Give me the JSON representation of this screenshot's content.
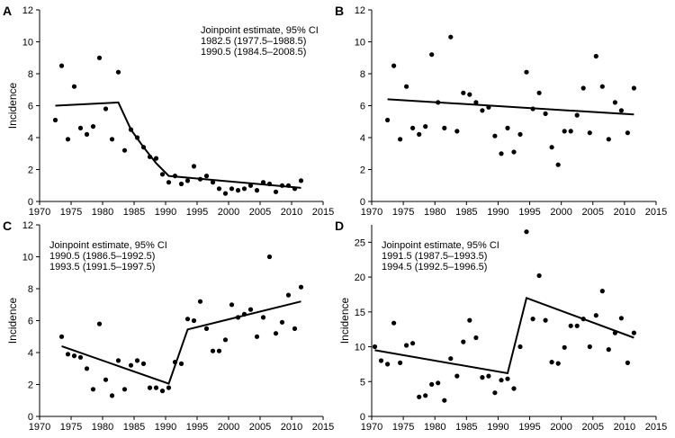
{
  "chart_data": [
    {
      "panel": "A",
      "type": "scatter",
      "ylabel": "Incidence",
      "xlim": [
        1970,
        2015
      ],
      "ylim": [
        0,
        12
      ],
      "xticks": [
        1970,
        1975,
        1980,
        1985,
        1990,
        1995,
        2000,
        2005,
        2010,
        2015
      ],
      "yticks": [
        0,
        2,
        4,
        6,
        8,
        10,
        12
      ],
      "annotation": [
        "Joinpoint estimate, 95% CI",
        "1982.5 (1977.5–1988.5)",
        "1990.5 (1984.5–2008.5)"
      ],
      "points": [
        [
          1972.5,
          5.1
        ],
        [
          1973.5,
          8.5
        ],
        [
          1974.5,
          3.9
        ],
        [
          1975.5,
          7.2
        ],
        [
          1976.5,
          4.6
        ],
        [
          1977.5,
          4.2
        ],
        [
          1978.5,
          4.7
        ],
        [
          1979.5,
          9.0
        ],
        [
          1980.5,
          5.8
        ],
        [
          1981.5,
          3.9
        ],
        [
          1982.5,
          8.1
        ],
        [
          1983.5,
          3.2
        ],
        [
          1984.5,
          4.5
        ],
        [
          1985.5,
          4.0
        ],
        [
          1986.5,
          3.4
        ],
        [
          1987.5,
          2.8
        ],
        [
          1988.5,
          2.7
        ],
        [
          1989.5,
          1.7
        ],
        [
          1990.5,
          1.2
        ],
        [
          1991.5,
          1.6
        ],
        [
          1992.5,
          1.1
        ],
        [
          1993.5,
          1.3
        ],
        [
          1994.5,
          2.2
        ],
        [
          1995.5,
          1.4
        ],
        [
          1996.5,
          1.6
        ],
        [
          1997.5,
          1.2
        ],
        [
          1998.5,
          0.8
        ],
        [
          1999.5,
          0.5
        ],
        [
          2000.5,
          0.8
        ],
        [
          2001.5,
          0.7
        ],
        [
          2002.5,
          0.8
        ],
        [
          2003.5,
          1.0
        ],
        [
          2004.5,
          0.7
        ],
        [
          2005.5,
          1.2
        ],
        [
          2006.5,
          1.1
        ],
        [
          2007.5,
          0.6
        ],
        [
          2008.5,
          1.0
        ],
        [
          2009.5,
          1.0
        ],
        [
          2010.5,
          0.8
        ],
        [
          2011.5,
          1.3
        ]
      ],
      "fit": [
        [
          1972.5,
          6.0
        ],
        [
          1982.5,
          6.2
        ],
        [
          1984.5,
          4.5
        ],
        [
          1986.5,
          3.4
        ],
        [
          1988.5,
          2.4
        ],
        [
          1990.5,
          1.6
        ],
        [
          2011.5,
          0.85
        ]
      ]
    },
    {
      "panel": "B",
      "type": "scatter",
      "ylabel": "",
      "xlim": [
        1970,
        2015
      ],
      "ylim": [
        0,
        12
      ],
      "xticks": [
        1970,
        1975,
        1980,
        1985,
        1990,
        1995,
        2000,
        2005,
        2010,
        2015
      ],
      "yticks": [
        0,
        2,
        4,
        6,
        8,
        10,
        12
      ],
      "annotation": [],
      "points": [
        [
          1972.5,
          5.1
        ],
        [
          1973.5,
          8.5
        ],
        [
          1974.5,
          3.9
        ],
        [
          1975.5,
          7.2
        ],
        [
          1976.5,
          4.6
        ],
        [
          1977.5,
          4.2
        ],
        [
          1978.5,
          4.7
        ],
        [
          1979.5,
          9.2
        ],
        [
          1980.5,
          6.2
        ],
        [
          1981.5,
          4.6
        ],
        [
          1982.5,
          10.3
        ],
        [
          1983.5,
          4.4
        ],
        [
          1984.5,
          6.8
        ],
        [
          1985.5,
          6.7
        ],
        [
          1986.5,
          6.2
        ],
        [
          1987.5,
          5.7
        ],
        [
          1988.5,
          5.9
        ],
        [
          1989.5,
          4.1
        ],
        [
          1990.5,
          3.0
        ],
        [
          1991.5,
          4.6
        ],
        [
          1992.5,
          3.1
        ],
        [
          1993.5,
          4.2
        ],
        [
          1994.5,
          8.1
        ],
        [
          1995.5,
          5.8
        ],
        [
          1996.5,
          6.8
        ],
        [
          1997.5,
          5.5
        ],
        [
          1998.5,
          3.4
        ],
        [
          1999.5,
          2.3
        ],
        [
          2000.5,
          4.4
        ],
        [
          2001.5,
          4.4
        ],
        [
          2002.5,
          5.4
        ],
        [
          2003.5,
          7.1
        ],
        [
          2004.5,
          4.3
        ],
        [
          2005.5,
          9.1
        ],
        [
          2006.5,
          7.2
        ],
        [
          2007.5,
          3.9
        ],
        [
          2008.5,
          6.2
        ],
        [
          2009.5,
          5.7
        ],
        [
          2010.5,
          4.3
        ],
        [
          2011.5,
          7.1
        ]
      ],
      "fit": [
        [
          1972.5,
          6.4
        ],
        [
          2011.5,
          5.45
        ]
      ]
    },
    {
      "panel": "C",
      "type": "scatter",
      "ylabel": "Incidence",
      "xlim": [
        1970,
        2015
      ],
      "ylim": [
        0,
        12
      ],
      "xticks": [
        1970,
        1975,
        1980,
        1985,
        1990,
        1995,
        2000,
        2005,
        2010,
        2015
      ],
      "yticks": [
        0,
        2,
        4,
        6,
        8,
        10,
        12
      ],
      "annotation": [
        "Joinpoint estimate, 95% CI",
        "1990.5 (1986.5–1992.5)",
        "1993.5 (1991.5–1997.5)"
      ],
      "points": [
        [
          1973.5,
          5.0
        ],
        [
          1974.5,
          3.9
        ],
        [
          1975.5,
          3.8
        ],
        [
          1976.5,
          3.7
        ],
        [
          1977.5,
          3.0
        ],
        [
          1978.5,
          1.7
        ],
        [
          1979.5,
          5.8
        ],
        [
          1980.5,
          2.3
        ],
        [
          1981.5,
          1.3
        ],
        [
          1982.5,
          3.5
        ],
        [
          1983.5,
          1.7
        ],
        [
          1984.5,
          3.2
        ],
        [
          1985.5,
          3.5
        ],
        [
          1986.5,
          3.3
        ],
        [
          1987.5,
          1.8
        ],
        [
          1988.5,
          1.8
        ],
        [
          1989.5,
          1.6
        ],
        [
          1990.5,
          1.8
        ],
        [
          1991.5,
          3.4
        ],
        [
          1992.5,
          3.3
        ],
        [
          1993.5,
          6.1
        ],
        [
          1994.5,
          6.0
        ],
        [
          1995.5,
          7.2
        ],
        [
          1996.5,
          5.5
        ],
        [
          1997.5,
          4.1
        ],
        [
          1998.5,
          4.1
        ],
        [
          1999.5,
          4.8
        ],
        [
          2000.5,
          7.0
        ],
        [
          2001.5,
          6.2
        ],
        [
          2002.5,
          6.4
        ],
        [
          2003.5,
          6.7
        ],
        [
          2004.5,
          5.0
        ],
        [
          2005.5,
          6.2
        ],
        [
          2006.5,
          10.0
        ],
        [
          2007.5,
          5.2
        ],
        [
          2008.5,
          5.9
        ],
        [
          2009.5,
          7.6
        ],
        [
          2010.5,
          5.5
        ],
        [
          2011.5,
          8.1
        ]
      ],
      "fit": [
        [
          1973.5,
          4.4
        ],
        [
          1990.5,
          2.05
        ],
        [
          1993.5,
          5.45
        ],
        [
          2011.5,
          7.2
        ]
      ]
    },
    {
      "panel": "D",
      "type": "scatter",
      "ylabel": "Incidence",
      "xlim": [
        1970,
        2015
      ],
      "ylim": [
        0,
        27.5
      ],
      "xticks": [
        1970,
        1975,
        1980,
        1985,
        1990,
        1995,
        2000,
        2005,
        2010,
        2015
      ],
      "yticks": [
        0,
        5,
        10,
        15,
        20,
        25
      ],
      "annotation": [
        "Joinpoint estimate, 95% CI",
        "1991.5 (1987.5–1993.5)",
        "1994.5 (1992.5–1996.5)"
      ],
      "points": [
        [
          1970.5,
          10.0
        ],
        [
          1971.5,
          8.0
        ],
        [
          1972.5,
          7.5
        ],
        [
          1973.5,
          13.4
        ],
        [
          1974.5,
          7.7
        ],
        [
          1975.5,
          10.2
        ],
        [
          1976.5,
          10.5
        ],
        [
          1977.5,
          2.8
        ],
        [
          1978.5,
          3.0
        ],
        [
          1979.5,
          4.6
        ],
        [
          1980.5,
          4.8
        ],
        [
          1981.5,
          2.3
        ],
        [
          1982.5,
          8.3
        ],
        [
          1983.5,
          5.8
        ],
        [
          1984.5,
          10.7
        ],
        [
          1985.5,
          13.8
        ],
        [
          1986.5,
          11.3
        ],
        [
          1987.5,
          5.6
        ],
        [
          1988.5,
          5.8
        ],
        [
          1989.5,
          3.4
        ],
        [
          1990.5,
          5.2
        ],
        [
          1991.5,
          5.4
        ],
        [
          1992.5,
          4.0
        ],
        [
          1993.5,
          10.0
        ],
        [
          1994.5,
          26.5
        ],
        [
          1995.5,
          14.0
        ],
        [
          1996.5,
          20.2
        ],
        [
          1997.5,
          13.8
        ],
        [
          1998.5,
          7.8
        ],
        [
          1999.5,
          7.6
        ],
        [
          2000.5,
          9.9
        ],
        [
          2001.5,
          13.0
        ],
        [
          2002.5,
          13.0
        ],
        [
          2003.5,
          14.0
        ],
        [
          2004.5,
          10.0
        ],
        [
          2005.5,
          14.5
        ],
        [
          2006.5,
          18.0
        ],
        [
          2007.5,
          9.6
        ],
        [
          2008.5,
          12.0
        ],
        [
          2009.5,
          14.1
        ],
        [
          2010.5,
          7.7
        ],
        [
          2011.5,
          12.0
        ]
      ],
      "fit": [
        [
          1970.5,
          9.5
        ],
        [
          1991.5,
          6.2
        ],
        [
          1994.5,
          17.0
        ],
        [
          2011.5,
          11.3
        ]
      ]
    }
  ]
}
